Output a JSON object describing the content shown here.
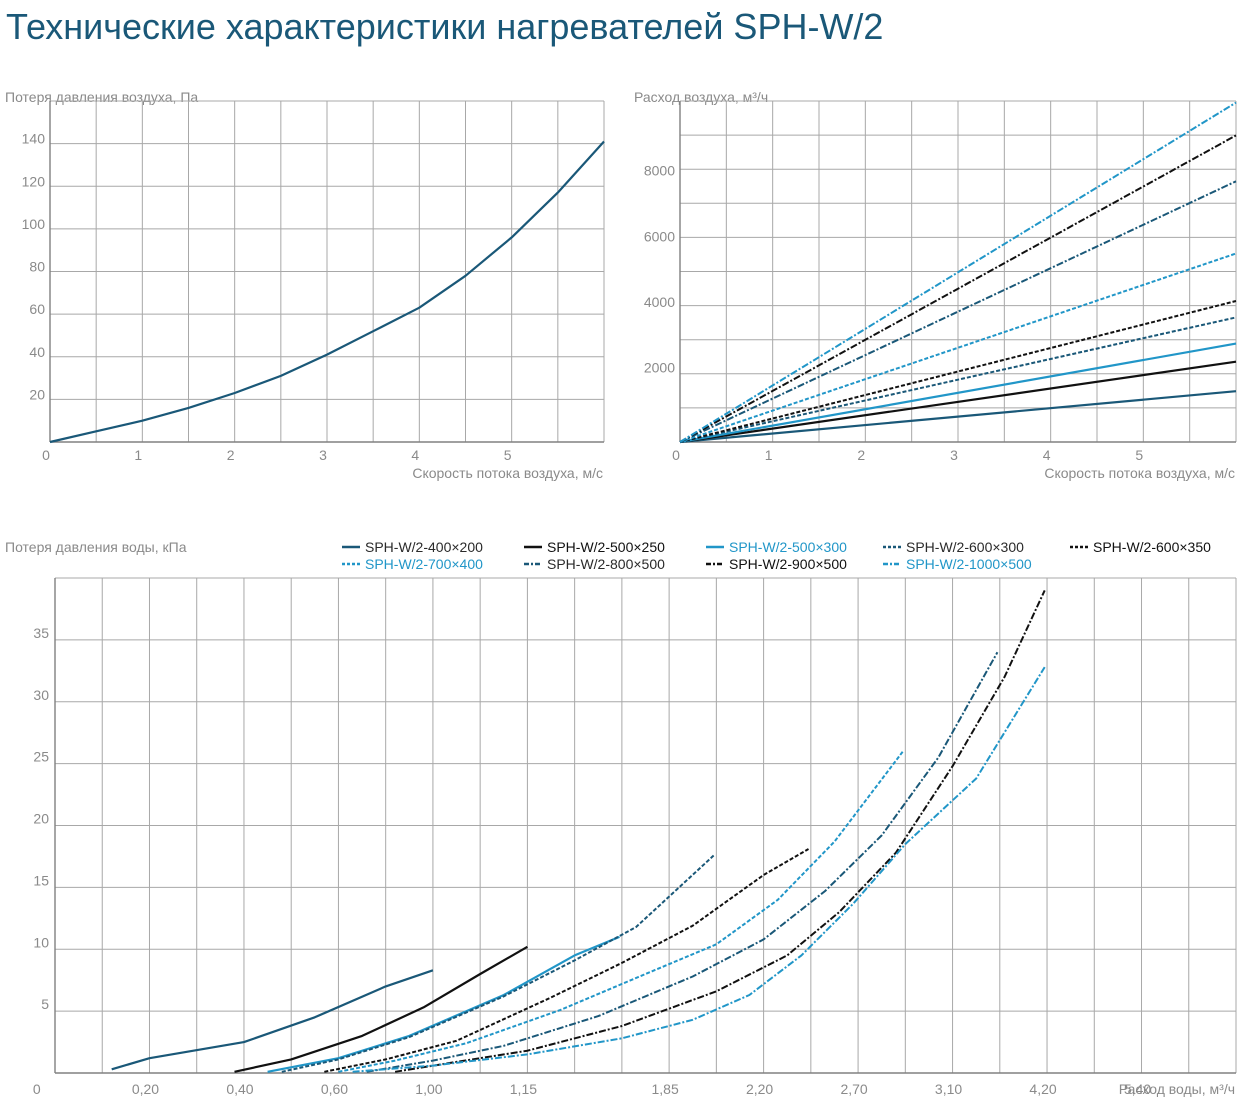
{
  "page": {
    "title": "Технические характеристики нагревателей SPH-W/2"
  },
  "colors": {
    "dark_blue": "#1a5878",
    "black": "#111111",
    "light_blue": "#2196c8",
    "grid": "#a8a8a8",
    "text": "#8a8a8a"
  },
  "chart_data": [
    {
      "type": "line",
      "ylabel": "Потеря давления воздуха, Па",
      "xlabel": "Скорость потока воздуха, м/с",
      "x_ticks": [
        "0",
        "1",
        "2",
        "3",
        "4",
        "5"
      ],
      "y_ticks": [
        "20",
        "40",
        "60",
        "80",
        "100",
        "120",
        "140"
      ],
      "xlim": [
        0,
        6
      ],
      "ylim": [
        0,
        160
      ],
      "grid": true,
      "series": [
        {
          "points": [
            [
              0,
              0
            ],
            [
              0.5,
              5
            ],
            [
              1,
              10
            ],
            [
              1.5,
              16
            ],
            [
              2,
              23
            ],
            [
              2.5,
              31
            ],
            [
              3,
              41
            ],
            [
              3.5,
              52
            ],
            [
              4,
              63
            ],
            [
              4.5,
              78
            ],
            [
              5,
              96
            ],
            [
              5.5,
              117
            ],
            [
              6,
              141
            ]
          ]
        }
      ]
    },
    {
      "type": "line",
      "ylabel": "Расход воздуха, м³/ч",
      "xlabel": "Скорость потока воздуха, м/с",
      "x_ticks": [
        "0",
        "1",
        "2",
        "3",
        "4",
        "5"
      ],
      "y_ticks": [
        "2000",
        "4000",
        "6000",
        "8000"
      ],
      "xlim": [
        0,
        6
      ],
      "ylim": [
        0,
        10400
      ],
      "grid": true,
      "series": [
        {
          "name": "SPH-W/2-400×200",
          "points": [
            [
              0,
              0
            ],
            [
              6,
              1550
            ]
          ]
        },
        {
          "name": "SPH-W/2-500×250",
          "points": [
            [
              0,
              0
            ],
            [
              6,
              2450
            ]
          ]
        },
        {
          "name": "SPH-W/2-500×300",
          "points": [
            [
              0,
              0
            ],
            [
              6,
              3000
            ]
          ]
        },
        {
          "name": "SPH-W/2-600×300",
          "points": [
            [
              0,
              0
            ],
            [
              6,
              3800
            ]
          ]
        },
        {
          "name": "SPH-W/2-600×350",
          "points": [
            [
              0,
              0
            ],
            [
              6,
              4300
            ]
          ]
        },
        {
          "name": "SPH-W/2-700×400",
          "points": [
            [
              0,
              0
            ],
            [
              6,
              5750
            ]
          ]
        },
        {
          "name": "SPH-W/2-800×500",
          "points": [
            [
              0,
              0
            ],
            [
              6,
              7950
            ]
          ]
        },
        {
          "name": "SPH-W/2-900×500",
          "points": [
            [
              0,
              0
            ],
            [
              6,
              9350
            ]
          ]
        },
        {
          "name": "SPH-W/2-1000×500",
          "points": [
            [
              0,
              0
            ],
            [
              6,
              10350
            ]
          ]
        }
      ]
    },
    {
      "type": "line",
      "ylabel": "Потеря давления воды, кПа",
      "xlabel": "Расход воды, м³/ч",
      "x_ticks": [
        "0",
        "0,20",
        "0,40",
        "0,60",
        "1,00",
        "1,15",
        "1,85",
        "2,20",
        "2,70",
        "3,10",
        "4,20",
        "5,40"
      ],
      "y_ticks": [
        "5",
        "10",
        "15",
        "20",
        "25",
        "30",
        "35"
      ],
      "ylim": [
        0,
        40
      ],
      "legend": "top",
      "grid": true,
      "series": [
        {
          "name": "SPH-W/2-400×200",
          "points": [
            [
              1.2,
              0.3
            ],
            [
              2,
              1.2
            ],
            [
              4,
              2.5
            ],
            [
              5.5,
              4.5
            ],
            [
              7,
              7
            ],
            [
              8,
              8.3
            ]
          ]
        },
        {
          "name": "SPH-W/2-500×250",
          "points": [
            [
              3.8,
              0.1
            ],
            [
              5,
              1.1
            ],
            [
              6.5,
              3
            ],
            [
              7.8,
              5.3
            ],
            [
              9,
              8
            ],
            [
              10,
              10.2
            ]
          ]
        },
        {
          "name": "SPH-W/2-500×300",
          "points": [
            [
              4.5,
              0.1
            ],
            [
              6,
              1.2
            ],
            [
              7.5,
              3
            ],
            [
              9.5,
              6.3
            ],
            [
              11,
              9.5
            ],
            [
              11.95,
              11
            ]
          ]
        },
        {
          "name": "SPH-W/2-600×300",
          "points": [
            [
              4.8,
              0.1
            ],
            [
              6,
              1.1
            ],
            [
              7.5,
              2.9
            ],
            [
              9.5,
              6.2
            ],
            [
              11,
              9.1
            ],
            [
              12.3,
              11.8
            ],
            [
              13.95,
              17.6
            ]
          ]
        },
        {
          "name": "SPH-W/2-600×350",
          "points": [
            [
              5.7,
              0.1
            ],
            [
              7,
              1.1
            ],
            [
              8.5,
              2.6
            ],
            [
              10.5,
              6.1
            ],
            [
              12,
              8.9
            ],
            [
              13.5,
              11.9
            ],
            [
              15,
              16
            ],
            [
              15.95,
              18.1
            ]
          ]
        },
        {
          "name": "SPH-W/2-700×400",
          "points": [
            [
              6,
              0.1
            ],
            [
              7.2,
              1
            ],
            [
              8.7,
              2.4
            ],
            [
              10.7,
              5.1
            ],
            [
              12.5,
              8
            ],
            [
              14,
              10.4
            ],
            [
              15.3,
              14
            ],
            [
              16.5,
              18.7
            ],
            [
              17.95,
              26
            ]
          ]
        },
        {
          "name": "SPH-W/2-800×500",
          "points": [
            [
              6.6,
              0.1
            ],
            [
              8,
              1
            ],
            [
              9.5,
              2.2
            ],
            [
              11.5,
              4.6
            ],
            [
              13.5,
              7.8
            ],
            [
              15,
              10.8
            ],
            [
              16.3,
              14.7
            ],
            [
              17.5,
              19.2
            ],
            [
              18.7,
              25.5
            ],
            [
              19.95,
              34
            ]
          ]
        },
        {
          "name": "SPH-W/2-900×500",
          "points": [
            [
              7.2,
              0.1
            ],
            [
              8.5,
              0.9
            ],
            [
              10,
              1.8
            ],
            [
              12,
              3.8
            ],
            [
              14,
              6.6
            ],
            [
              15.5,
              9.5
            ],
            [
              16.6,
              13
            ],
            [
              17.8,
              17.8
            ],
            [
              19,
              24.8
            ],
            [
              20.1,
              32
            ],
            [
              20.95,
              39
            ]
          ]
        },
        {
          "name": "SPH-W/2-1000×500",
          "points": [
            [
              6.3,
              0.1
            ],
            [
              8,
              0.6
            ],
            [
              10,
              1.5
            ],
            [
              12,
              2.8
            ],
            [
              13.5,
              4.3
            ],
            [
              14.7,
              6.3
            ],
            [
              15.8,
              9.5
            ],
            [
              16.9,
              13.7
            ],
            [
              18,
              18.5
            ],
            [
              19.5,
              23.8
            ],
            [
              20.95,
              32.8
            ]
          ]
        }
      ]
    }
  ]
}
